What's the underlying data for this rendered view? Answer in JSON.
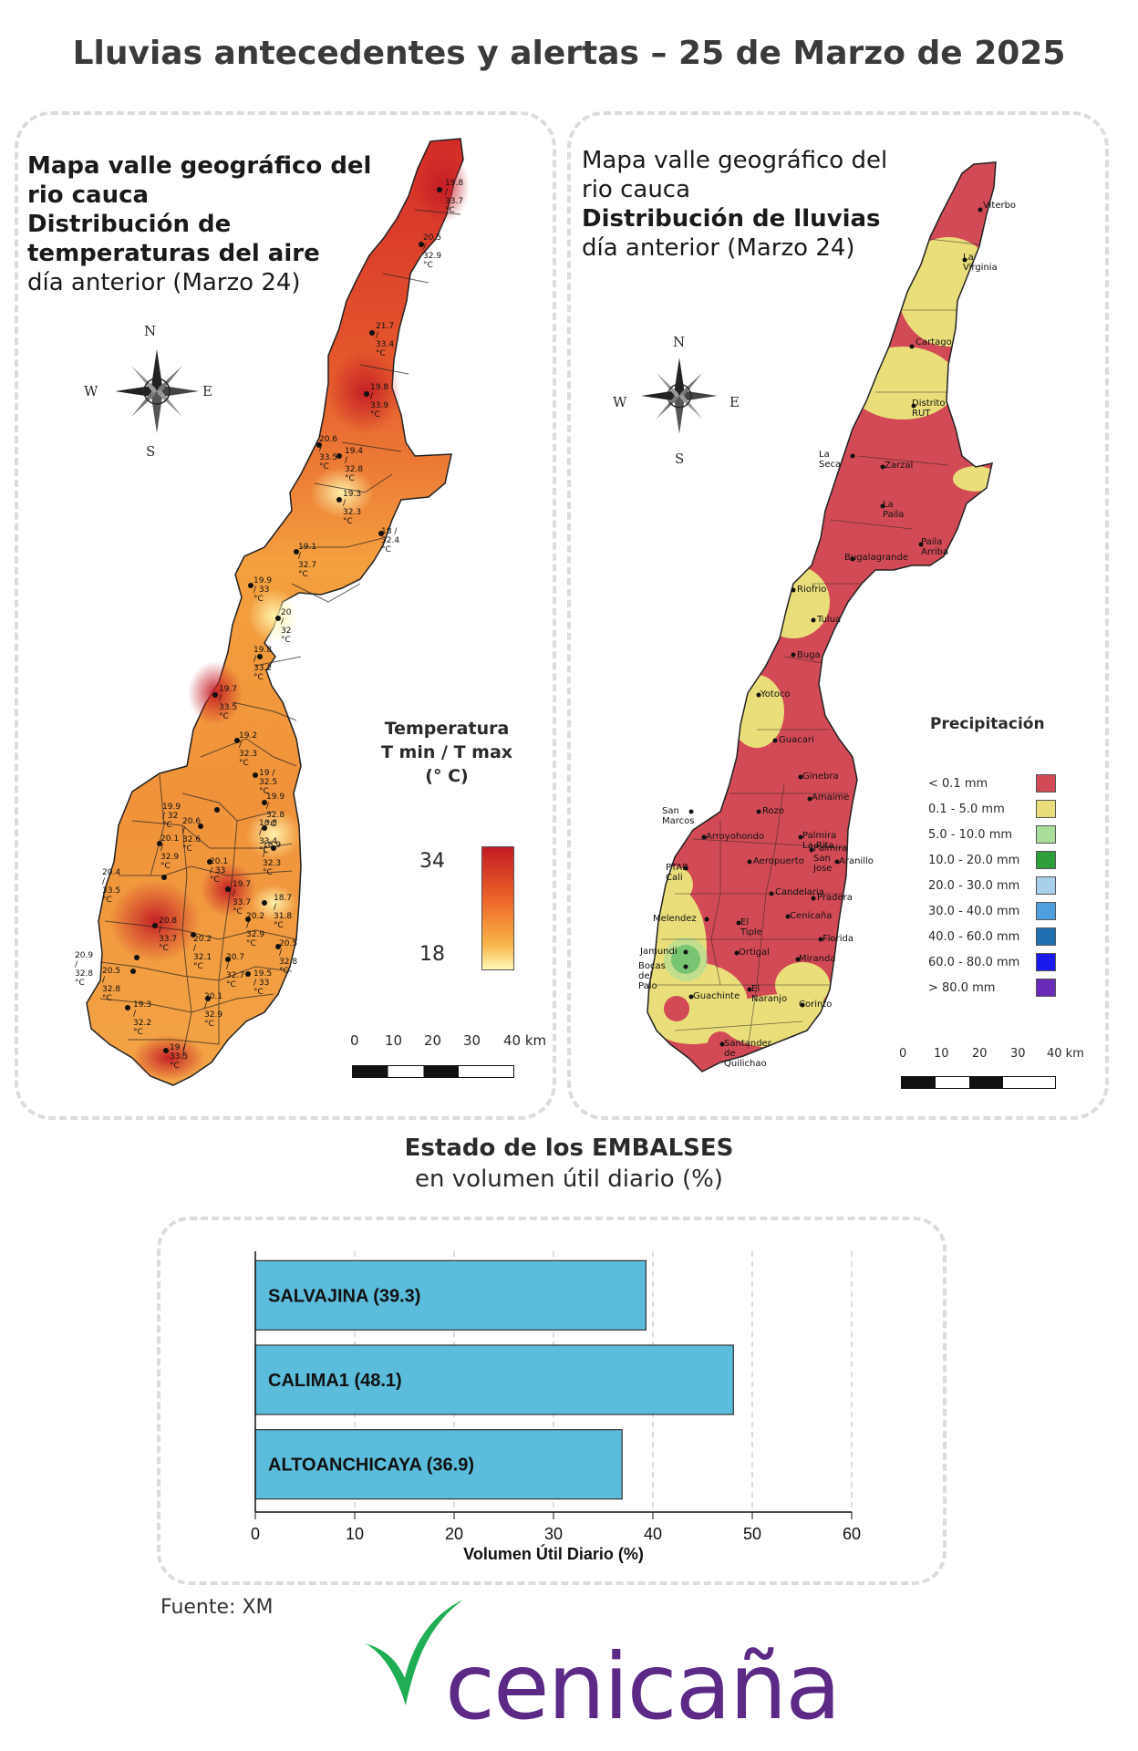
{
  "header": {
    "title": "Lluvias antecedentes y alertas – 25 de Marzo de 2025"
  },
  "temp_panel": {
    "title_lines": [
      "Mapa valle geográfico del",
      "rio cauca"
    ],
    "title_bold_lines": [
      "Distribución de",
      "temperaturas del aire"
    ],
    "subtitle": "día anterior (Marzo 24)",
    "compass": {
      "n": "N",
      "s": "S",
      "e": "E",
      "w": "W"
    },
    "legend": {
      "line1": "Temperatura",
      "line2": "T min / T max",
      "line3": "(° C)",
      "max": "34",
      "min": "18"
    },
    "scale_labels": [
      "0",
      "10",
      "20",
      "30",
      "40 km"
    ],
    "stations": [
      "19.8 / 33.7 °C",
      "20.5 / 32.9 °C",
      "21.7 / 33.4 °C",
      "19.8 / 33.9 °C",
      "20.6 / 33.5 °C",
      "19.4 / 32.8 °C",
      "19.3 / 32.3 °C",
      "18 / 32.4 °C",
      "19.1 / 32.7 °C",
      "19.9 / 33 °C",
      "20 / 32 °C",
      "19.8 / 33.2 °C",
      "19.7 / 33.5 °C",
      "19.2 / 32.3 °C",
      "19 / 32.5 °C",
      "19.9 / 32 °C",
      "19.9 / 32.8 °C",
      "20.6 / 32.6 °C",
      "18.8 / 33.4 °C",
      "20.1 / 32.9 °C",
      "18.9 / 32.3 °C",
      "20.1 / 33 °C",
      "20.4 / 33.5 °C",
      "19.7 / 33.7 °C",
      "18.7 / 31.8 °C",
      "20.8 / 33.7 °C",
      "20.2 / 32.9 °C",
      "20.2 / 32.1 °C",
      "20.5 / 32.8 °C",
      "20.9 / 32.8 °C",
      "20.7 / 32.7 °C",
      "20.5 / 32.8 °C",
      "19.5 / 33 °C",
      "19.3 / 32.2 °C",
      "20.1 / 32.9 °C",
      "19 / 33.5 °C"
    ]
  },
  "rain_panel": {
    "title_lines": [
      "Mapa valle geográfico del",
      "rio cauca"
    ],
    "title_bold": "Distribución de lluvias",
    "subtitle": "día anterior (Marzo 24)",
    "compass": {
      "n": "N",
      "s": "S",
      "e": "E",
      "w": "W"
    },
    "legend_title": "Precipitación",
    "legend": [
      {
        "label": "< 0.1 mm",
        "color": "#d24a55"
      },
      {
        "label": "0.1 - 5.0 mm",
        "color": "#e9de7a"
      },
      {
        "label": "5.0 - 10.0 mm",
        "color": "#a8dd9a"
      },
      {
        "label": "10.0 - 20.0 mm",
        "color": "#2e9e3b"
      },
      {
        "label": "20.0 - 30.0 mm",
        "color": "#a9d0ea"
      },
      {
        "label": "30.0 - 40.0 mm",
        "color": "#4d9fe0"
      },
      {
        "label": "40.0 - 60.0 mm",
        "color": "#1f6fb3"
      },
      {
        "label": "60.0 - 80.0 mm",
        "color": "#1a1aee"
      },
      {
        "label": "> 80.0 mm",
        "color": "#6a2bb8"
      }
    ],
    "scale_labels": [
      "0",
      "10",
      "20",
      "30",
      "40 km"
    ],
    "stations": [
      "Viterbo",
      "La Virginia",
      "Cartago",
      "Distrito RUT",
      "La Seca",
      "Zarzal",
      "La Paila",
      "Paila Arriba",
      "Bugalagrande",
      "Riofrio",
      "Tulua",
      "Buga",
      "Yotoco",
      "Guacari",
      "Ginebra",
      "San Marcos",
      "Rozo",
      "Amaime",
      "Palmira La Rita",
      "Arroyohondo",
      "Palmira San Jose",
      "Aeropuerto",
      "Aranillo",
      "PTAR Cali",
      "Candelaria",
      "Pradera",
      "Melendez",
      "Cenicaña",
      "El Tiple",
      "Jamundi",
      "Bocas del Palo",
      "Ortigal",
      "Florida",
      "Miranda",
      "Guachinte",
      "El Naranjo",
      "Corinto",
      "Santander de Quilichao"
    ]
  },
  "reservoirs": {
    "title_bold": "Estado de los EMBALSES",
    "subtitle": "en volumen útil diario (%)",
    "xlabel": "Volumen Útil Diario (%)",
    "xticks": [
      "0",
      "10",
      "20",
      "30",
      "40",
      "50",
      "60"
    ]
  },
  "chart_data": {
    "type": "bar",
    "orientation": "horizontal",
    "categories": [
      "SALVAJINA (39.3)",
      "CALIMA1 (48.1)",
      "ALTOANCHICAYA (36.9)"
    ],
    "values": [
      39.3,
      48.1,
      36.9
    ],
    "xlabel": "Volumen Útil Diario (%)",
    "xlim": [
      0,
      60
    ],
    "grid": "vertical dashed",
    "bar_color": "#5bbcdb"
  },
  "footer": {
    "source": "Fuente: XM",
    "logo_text": "cenicaña"
  }
}
